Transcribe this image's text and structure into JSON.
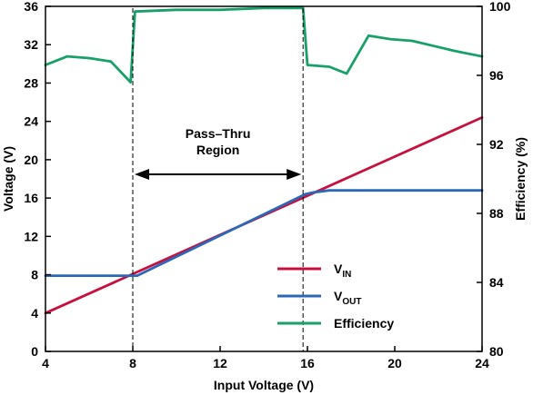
{
  "chart_data": {
    "type": "line",
    "xlabel": "Input Voltage (V)",
    "ylabel": "Voltage (V)",
    "y2label": "Efficiency (%)",
    "xlim": [
      4,
      24
    ],
    "ylim": [
      0,
      36
    ],
    "y2lim": [
      80,
      100
    ],
    "xticks": [
      "4",
      "8",
      "12",
      "16",
      "20",
      "24"
    ],
    "yticks": [
      "0",
      "4",
      "8",
      "12",
      "16",
      "20",
      "24",
      "28",
      "32",
      "36"
    ],
    "y2ticks": [
      "80",
      "84",
      "88",
      "92",
      "96",
      "100"
    ],
    "grid": false,
    "legend_position": "lower-right",
    "annotation": {
      "lines": [
        "Pass–Thru",
        "Region"
      ],
      "x_start": 8,
      "x_end": 15.8
    },
    "colors": {
      "vin": "#c8103e",
      "vout": "#2b68b7",
      "efficiency": "#19a06a"
    },
    "legend": [
      {
        "key": "vin",
        "main": "V",
        "sub": "IN"
      },
      {
        "key": "vout",
        "main": "V",
        "sub": "OUT"
      },
      {
        "key": "efficiency",
        "main": "Efficiency",
        "sub": ""
      }
    ],
    "series": [
      {
        "key": "vin",
        "axis": "left",
        "x": [
          4,
          24
        ],
        "y": [
          4,
          24.4
        ]
      },
      {
        "key": "vout",
        "axis": "left",
        "x": [
          4,
          8,
          8.2,
          15.9,
          16.3,
          17,
          24
        ],
        "y": [
          7.9,
          7.9,
          7.9,
          16.4,
          16.6,
          16.8,
          16.8
        ]
      },
      {
        "key": "efficiency",
        "axis": "right",
        "x": [
          4,
          5,
          6,
          7,
          7.9,
          8.1,
          10,
          12,
          14,
          15.8,
          16,
          17,
          17.8,
          18.8,
          19.8,
          20.8,
          21.8,
          22.8,
          24
        ],
        "y": [
          96.6,
          97.1,
          97.0,
          96.8,
          95.6,
          99.7,
          99.8,
          99.8,
          99.9,
          99.9,
          96.6,
          96.5,
          96.1,
          98.3,
          98.1,
          98.0,
          97.7,
          97.4,
          97.1
        ]
      }
    ]
  }
}
